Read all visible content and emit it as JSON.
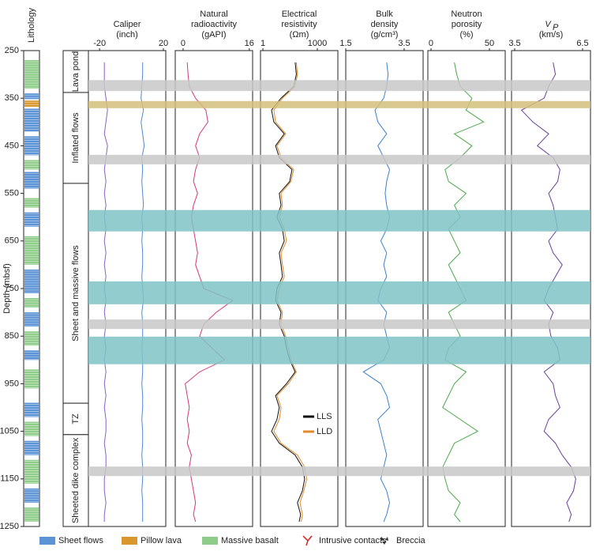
{
  "depth_axis": {
    "label": "Depth (mbsf)",
    "ylim": [
      250,
      1250
    ],
    "yticks": [
      250,
      350,
      450,
      550,
      650,
      750,
      850,
      950,
      1050,
      1150,
      1250
    ]
  },
  "lithology_label": "Lithology",
  "depth": [
    275,
    300,
    325,
    350,
    375,
    400,
    425,
    450,
    475,
    500,
    525,
    550,
    575,
    600,
    625,
    650,
    675,
    700,
    725,
    750,
    775,
    800,
    825,
    850,
    875,
    900,
    925,
    950,
    975,
    1000,
    1025,
    1050,
    1075,
    1100,
    1125,
    1150,
    1175,
    1200,
    1225,
    1240
  ],
  "lithology": [
    {
      "top": 270,
      "bottom": 330,
      "color": "#8fcc8a"
    },
    {
      "top": 340,
      "bottom": 352,
      "color": "#5b93d6"
    },
    {
      "top": 355,
      "bottom": 368,
      "color": "#d8962c"
    },
    {
      "top": 372,
      "bottom": 420,
      "color": "#5b93d6"
    },
    {
      "top": 430,
      "bottom": 470,
      "color": "#5b93d6"
    },
    {
      "top": 480,
      "bottom": 500,
      "color": "#8fcc8a"
    },
    {
      "top": 505,
      "bottom": 540,
      "color": "#5b93d6"
    },
    {
      "top": 560,
      "bottom": 580,
      "color": "#8fcc8a"
    },
    {
      "top": 590,
      "bottom": 620,
      "color": "#5b93d6"
    },
    {
      "top": 640,
      "bottom": 700,
      "color": "#8fcc8a"
    },
    {
      "top": 710,
      "bottom": 760,
      "color": "#5b93d6"
    },
    {
      "top": 770,
      "bottom": 790,
      "color": "#8fcc8a"
    },
    {
      "top": 800,
      "bottom": 830,
      "color": "#5b93d6"
    },
    {
      "top": 840,
      "bottom": 870,
      "color": "#8fcc8a"
    },
    {
      "top": 880,
      "bottom": 900,
      "color": "#5b93d6"
    },
    {
      "top": 920,
      "bottom": 960,
      "color": "#8fcc8a"
    },
    {
      "top": 990,
      "bottom": 1020,
      "color": "#5b93d6"
    },
    {
      "top": 1030,
      "bottom": 1060,
      "color": "#8fcc8a"
    },
    {
      "top": 1070,
      "bottom": 1100,
      "color": "#5b93d6"
    },
    {
      "top": 1110,
      "bottom": 1160,
      "color": "#8fcc8a"
    },
    {
      "top": 1170,
      "bottom": 1200,
      "color": "#5b93d6"
    },
    {
      "top": 1210,
      "bottom": 1240,
      "color": "#8fcc8a"
    }
  ],
  "zones": [
    {
      "label": "Lava pond",
      "top": 250,
      "bottom": 338
    },
    {
      "label": "Inflated flows",
      "top": 338,
      "bottom": 529
    },
    {
      "label": "Sheet and massive flows",
      "top": 529,
      "bottom": 991
    },
    {
      "label": "TZ",
      "top": 991,
      "bottom": 1057
    },
    {
      "label": "Sheeted dike complex",
      "top": 1057,
      "bottom": 1250
    }
  ],
  "intervals": [
    {
      "top": 312,
      "bottom": 335,
      "color": "#c8c8c8"
    },
    {
      "top": 356,
      "bottom": 371,
      "color": "#d4c07a"
    },
    {
      "top": 469,
      "bottom": 489,
      "color": "#c8c8c8"
    },
    {
      "top": 585,
      "bottom": 630,
      "color": "#7fc3c6"
    },
    {
      "top": 735,
      "bottom": 783,
      "color": "#7fc3c6"
    },
    {
      "top": 815,
      "bottom": 835,
      "color": "#c8c8c8"
    },
    {
      "top": 851,
      "bottom": 909,
      "color": "#7fc3c6"
    },
    {
      "top": 1124,
      "bottom": 1144,
      "color": "#c8c8c8"
    }
  ],
  "chart_data": [
    {
      "type": "line",
      "title": [
        "Caliper",
        "(inch)"
      ],
      "xlim": [
        -27,
        21.5
      ],
      "xticks": [
        -20,
        20
      ],
      "series": [
        {
          "color": "#8b5fc7",
          "values": [
            -17,
            -17,
            -17,
            -16,
            -15,
            -16,
            -17,
            -15,
            -16,
            -17,
            -16,
            -17,
            -16,
            -17,
            -16,
            -17,
            -16,
            -17,
            -16,
            -17,
            -16,
            -17,
            -16,
            -17,
            -16,
            -17,
            -16,
            -17,
            -16,
            -17,
            -16,
            -16,
            -17,
            -16,
            -16,
            -17,
            -17,
            -16,
            -17,
            -17
          ]
        },
        {
          "color": "#4f88d0",
          "values": [
            7,
            7,
            6.5,
            6,
            7.5,
            6,
            7,
            8,
            6.5,
            7,
            6.5,
            7,
            7.5,
            6.5,
            7,
            6.5,
            7,
            7,
            6.5,
            7,
            7.5,
            6.5,
            7,
            7,
            6.5,
            7,
            7,
            6.5,
            7,
            7,
            6.5,
            7,
            7,
            6.5,
            7,
            7,
            6.5,
            7,
            7,
            7
          ]
        }
      ]
    },
    {
      "type": "line",
      "title": [
        "Natural",
        "radioactivity",
        "(gAPI)"
      ],
      "xlim": [
        -1.9,
        16.8
      ],
      "xticks": [
        0,
        16
      ],
      "series": [
        {
          "color": "#d4357f",
          "values": [
            1,
            1.2,
            1.5,
            3,
            5.5,
            6,
            4,
            3,
            4,
            3,
            2.5,
            3.5,
            2.5,
            2,
            2.5,
            3,
            3.5,
            3,
            4,
            5,
            12,
            8,
            5,
            4,
            7,
            10,
            4,
            0.5,
            1,
            1.5,
            1,
            1.5,
            1,
            2,
            1.5,
            2,
            2.5,
            3,
            2.5,
            3
          ]
        }
      ]
    },
    {
      "type": "line",
      "title": [
        "Electrical",
        "resistivity",
        "(Ωm)"
      ],
      "xscale": "log",
      "xlim": [
        0.74,
        13500
      ],
      "xticks": [
        1,
        1000
      ],
      "series": [
        {
          "name": "LLS",
          "color": "#111111",
          "values": [
            60,
            70,
            50,
            10,
            3,
            4,
            15,
            5,
            8,
            40,
            30,
            8,
            10,
            6,
            12,
            15,
            8,
            10,
            12,
            6,
            5,
            10,
            8,
            15,
            20,
            30,
            60,
            20,
            5,
            8,
            6,
            3,
            8,
            60,
            150,
            200,
            150,
            80,
            120,
            100
          ]
        },
        {
          "name": "LLD",
          "color": "#e08a2a",
          "values": [
            70,
            80,
            60,
            12,
            4,
            5,
            18,
            6,
            10,
            50,
            35,
            10,
            12,
            8,
            15,
            20,
            10,
            12,
            15,
            8,
            6,
            12,
            10,
            18,
            25,
            35,
            70,
            25,
            6,
            10,
            8,
            4,
            10,
            80,
            200,
            260,
            180,
            110,
            150,
            130
          ]
        }
      ]
    },
    {
      "type": "line",
      "title": [
        "Bulk",
        "density",
        "(g/cm³)"
      ],
      "xlim": [
        1.5,
        4.15
      ],
      "xticks": [
        1.5,
        3.5
      ],
      "series": [
        {
          "color": "#3a7fd0",
          "values": [
            2.9,
            2.95,
            2.9,
            2.8,
            2.5,
            2.6,
            2.9,
            2.6,
            2.8,
            3.0,
            2.9,
            2.85,
            2.9,
            3.0,
            2.9,
            2.7,
            2.9,
            2.8,
            2.9,
            2.7,
            2.6,
            2.9,
            2.8,
            2.9,
            3.0,
            2.8,
            2.1,
            2.7,
            2.9,
            3.0,
            2.6,
            2.7,
            2.8,
            2.9,
            2.8,
            2.7,
            2.9,
            3.0,
            2.9,
            2.8
          ]
        }
      ]
    },
    {
      "type": "line",
      "title": [
        "Neutron",
        "porosity",
        "(%)"
      ],
      "xlim": [
        -2.7,
        63.5
      ],
      "xticks": [
        0,
        50
      ],
      "series": [
        {
          "color": "#4aa84a",
          "values": [
            20,
            22,
            25,
            35,
            30,
            45,
            20,
            35,
            25,
            12,
            15,
            30,
            20,
            25,
            15,
            20,
            25,
            15,
            20,
            25,
            30,
            15,
            20,
            25,
            15,
            12,
            30,
            20,
            15,
            10,
            25,
            40,
            20,
            15,
            10,
            12,
            15,
            25,
            20,
            25
          ]
        }
      ]
    },
    {
      "type": "line",
      "title": [
        "V",
        "(km/s)"
      ],
      "title_sub": "P",
      "xlim": [
        3.36,
        6.85
      ],
      "xticks": [
        3.5,
        6.5
      ],
      "series": [
        {
          "color": "#6a3d9a",
          "values": [
            5.2,
            5.3,
            5.0,
            4.8,
            3.8,
            4.3,
            5.0,
            4.5,
            5.2,
            5.5,
            5.4,
            5.0,
            5.2,
            5.3,
            5.4,
            5.0,
            5.2,
            5.6,
            5.3,
            5.0,
            4.8,
            5.2,
            5.0,
            5.1,
            5.4,
            5.5,
            4.8,
            5.2,
            5.3,
            5.5,
            5.0,
            4.8,
            5.3,
            5.6,
            6.0,
            6.2,
            6.1,
            5.8,
            6.0,
            5.9
          ]
        }
      ]
    }
  ],
  "legend": [
    {
      "label": "Sheet flows",
      "color": "#5b93d6"
    },
    {
      "label": "Pillow lava",
      "color": "#d8962c"
    },
    {
      "label": "Massive basalt",
      "color": "#8fcc8a"
    },
    {
      "label": "Intrusive contacts",
      "color": "#d22222"
    },
    {
      "label": "Breccia",
      "color": "#333333"
    }
  ]
}
